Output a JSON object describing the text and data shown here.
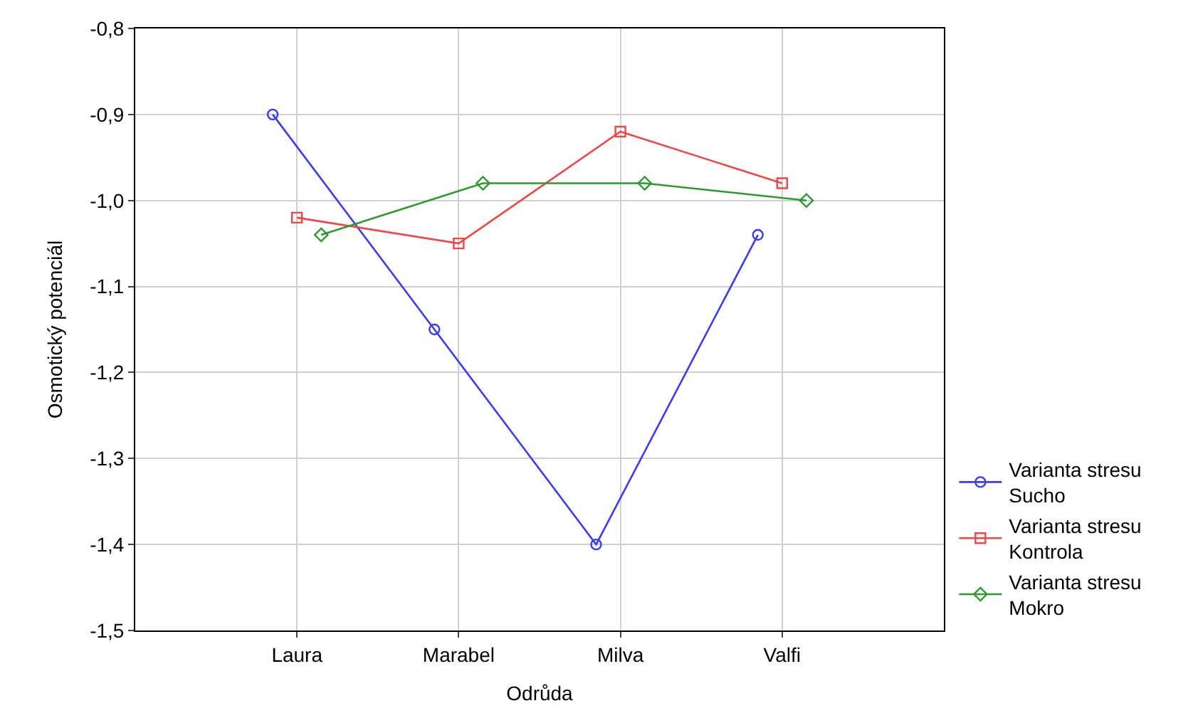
{
  "chart_data": {
    "type": "line",
    "xlabel": "Odrůda",
    "ylabel": "Osmotický potenciál",
    "categories": [
      "Laura",
      "Marabel",
      "Milva",
      "Valfi"
    ],
    "ylim": [
      -1.5,
      -0.8
    ],
    "yticks": [
      {
        "value": -1.5,
        "label": "-1,5"
      },
      {
        "value": -1.4,
        "label": "-1,4"
      },
      {
        "value": -1.3,
        "label": "-1,3"
      },
      {
        "value": -1.2,
        "label": "-1,2"
      },
      {
        "value": -1.1,
        "label": "-1,1"
      },
      {
        "value": -1.0,
        "label": "-1,0"
      },
      {
        "value": -0.9,
        "label": "-0,9"
      },
      {
        "value": -0.8,
        "label": "-0,8"
      }
    ],
    "grid": true,
    "legend": "bottom right",
    "series": [
      {
        "name": "Varianta stresu\nSucho",
        "color": "#3b3bf5",
        "marker": "circle",
        "values": [
          -0.9,
          -1.15,
          -1.4,
          -1.04
        ]
      },
      {
        "name": "Varianta stresu\nKontrola",
        "color": "#f04646",
        "marker": "square",
        "values": [
          -1.02,
          -1.05,
          -0.92,
          -0.98
        ]
      },
      {
        "name": "Varianta stresu\nMokro",
        "color": "#2e9a2e",
        "marker": "diamond",
        "values": [
          -1.04,
          -0.98,
          -0.98,
          -1.0
        ]
      }
    ]
  }
}
